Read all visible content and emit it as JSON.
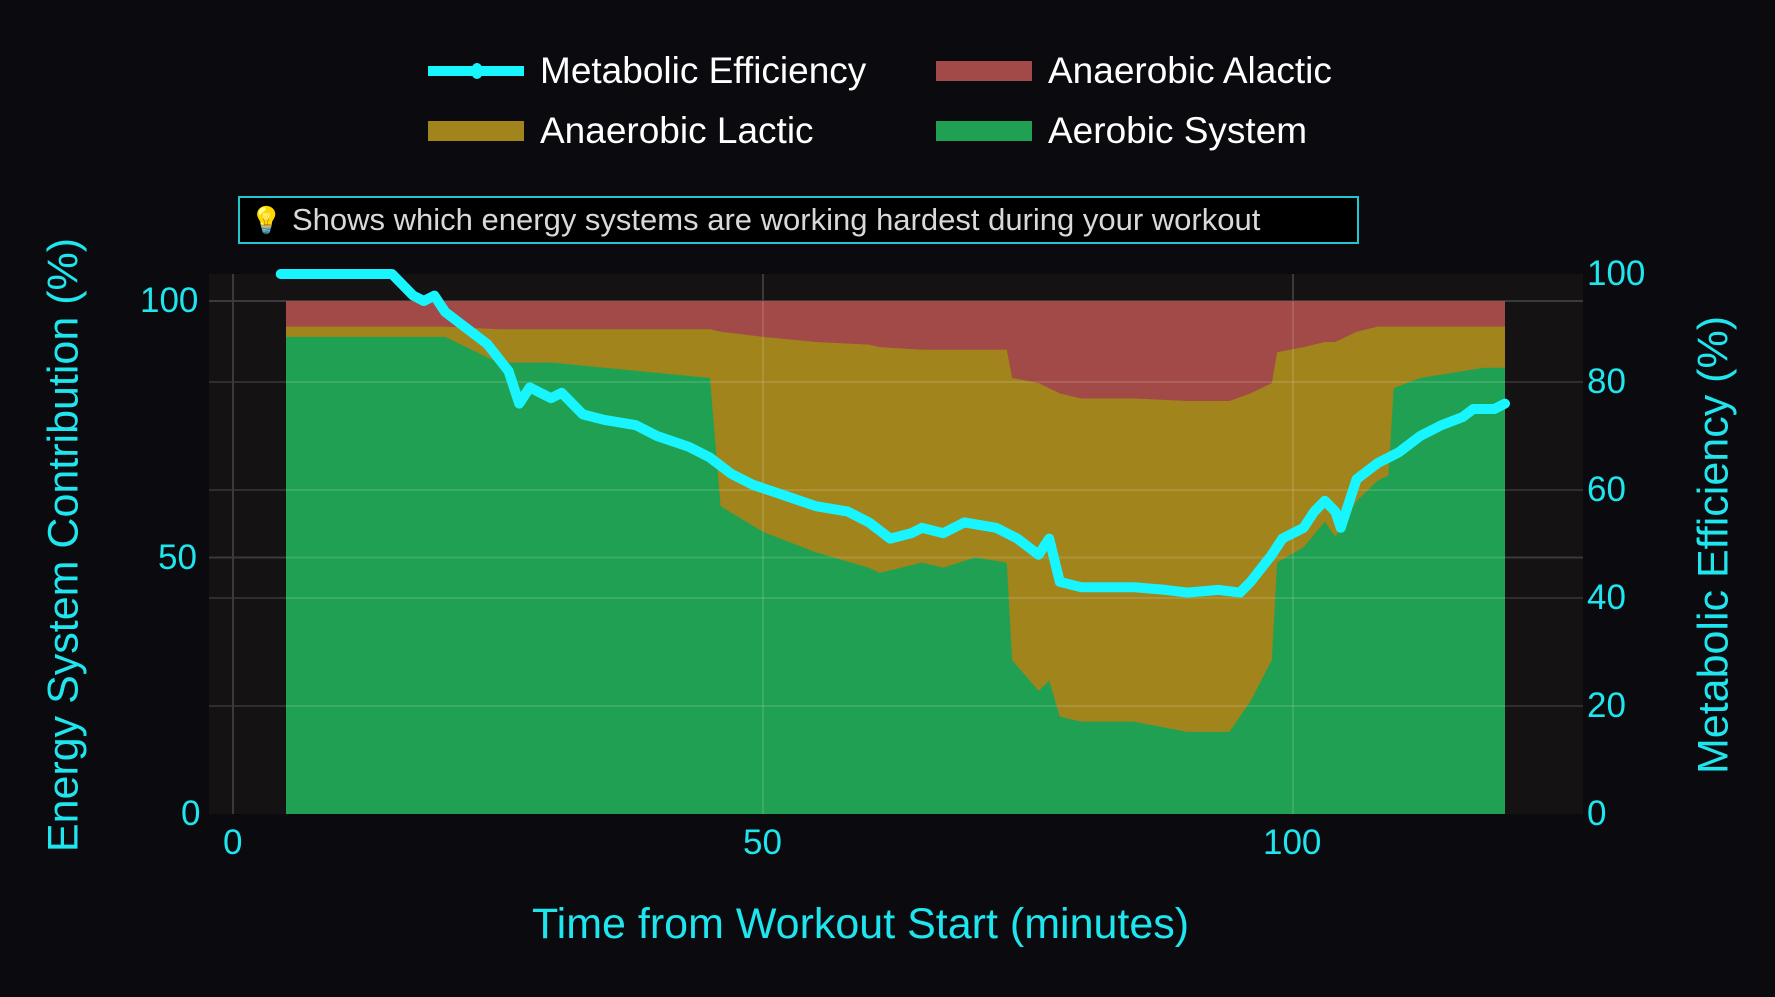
{
  "legend": {
    "items": [
      {
        "label": "Metabolic Efficiency",
        "type": "line",
        "color": "#19f5ff"
      },
      {
        "label": "Anaerobic Alactic",
        "type": "area",
        "color": "#a24a48"
      },
      {
        "label": "Anaerobic Lactic",
        "type": "area",
        "color": "#a1841c"
      },
      {
        "label": "Aerobic System",
        "type": "area",
        "color": "#20a052"
      }
    ]
  },
  "annotation": {
    "icon": "lightbulb-icon",
    "text": "Shows which energy systems are working hardest during your workout"
  },
  "axes": {
    "x_title": "Time from Workout Start (minutes)",
    "y_left_title": "Energy System Contribution (%)",
    "y_right_title": "Metabolic Efficiency (%)",
    "x_ticks": [
      "0",
      "50",
      "100"
    ],
    "y_left_ticks": [
      "0",
      "50",
      "100"
    ],
    "y_right_ticks": [
      "0",
      "20",
      "40",
      "60",
      "80",
      "100"
    ]
  },
  "colors": {
    "page_bg": "#0b0b0f",
    "plot_bg": "#141213",
    "grid": "#3a3a3a",
    "axis_text": "#1fe6ee",
    "alactic": "#a24a48",
    "lactic": "#a1841c",
    "aerobic": "#20a052",
    "efficiency": "#19f5ff"
  },
  "chart_data": {
    "type": "area",
    "title": "",
    "xlabel": "Time from Workout Start (minutes)",
    "ylabel": "Energy System Contribution (%)",
    "y2label": "Metabolic Efficiency (%)",
    "xlim": [
      -2.5,
      127.5
    ],
    "ylim": [
      0,
      105
    ],
    "y2lim": [
      0,
      100
    ],
    "grid": true,
    "legend_position": "top-center",
    "stacked": true,
    "x": [
      5,
      10,
      15,
      20,
      25,
      30,
      35,
      40,
      45,
      46,
      50,
      55,
      60,
      61,
      65,
      67,
      70,
      73,
      73.5,
      76,
      77,
      78,
      80,
      85,
      90,
      94,
      96,
      98,
      98.5,
      101,
      103,
      104,
      106,
      108,
      109,
      109.5,
      112,
      115,
      118,
      120
    ],
    "series": [
      {
        "name": "Aerobic System",
        "axis": "left",
        "stack_top": [
          93,
          93,
          93,
          93,
          88,
          88,
          87,
          86,
          85,
          60,
          55,
          51,
          48,
          47,
          49,
          48,
          50,
          49,
          30,
          24,
          26,
          19,
          18,
          18,
          16,
          16,
          22,
          30,
          49,
          52,
          57,
          54,
          61,
          65,
          66,
          83,
          85,
          86,
          87,
          87
        ]
      },
      {
        "name": "Anaerobic Lactic",
        "axis": "left",
        "stack_top": [
          95,
          95,
          95,
          95,
          94.5,
          94.5,
          94.5,
          94.5,
          94.5,
          94,
          93,
          92,
          91.5,
          91,
          90.5,
          90.5,
          90.5,
          90.5,
          85,
          84,
          83,
          82,
          81,
          81,
          80.5,
          80.5,
          82,
          84,
          90,
          91,
          92,
          92,
          94,
          95,
          95,
          95,
          95,
          95,
          95,
          95
        ]
      },
      {
        "name": "Anaerobic Alactic",
        "axis": "left",
        "stack_top": [
          100,
          100,
          100,
          100,
          100,
          100,
          100,
          100,
          100,
          100,
          100,
          100,
          100,
          100,
          100,
          100,
          100,
          100,
          100,
          100,
          100,
          100,
          100,
          100,
          100,
          100,
          100,
          100,
          100,
          100,
          100,
          100,
          100,
          100,
          100,
          100,
          100,
          100,
          100,
          100
        ]
      }
    ],
    "efficiency": {
      "name": "Metabolic Efficiency",
      "axis": "right",
      "x": [
        4.5,
        10,
        15,
        17,
        18,
        19,
        20,
        22,
        24,
        26,
        27,
        28,
        30,
        31,
        33,
        35,
        38,
        40,
        43,
        45,
        47,
        49,
        52,
        55,
        58,
        60,
        62,
        64,
        65,
        67,
        69,
        72,
        74,
        76,
        77,
        77.5,
        78,
        80,
        85,
        88,
        90,
        93,
        95,
        96,
        98,
        99,
        101,
        102,
        103,
        104,
        104.5,
        106,
        108,
        110,
        112,
        114,
        116,
        117,
        119,
        120
      ],
      "values": [
        100,
        100,
        100,
        96,
        95,
        96,
        93,
        90,
        87,
        82,
        76,
        79,
        77,
        78,
        74,
        73,
        72,
        70,
        68,
        66,
        63,
        61,
        59,
        57,
        56,
        54,
        51,
        52,
        53,
        52,
        54,
        53,
        51,
        48,
        51,
        47,
        43,
        42,
        42,
        41.5,
        41,
        41.5,
        41,
        43,
        48,
        51,
        53,
        56,
        58,
        56,
        53,
        62,
        65,
        67,
        70,
        72,
        73.5,
        75,
        75,
        76
      ]
    }
  }
}
